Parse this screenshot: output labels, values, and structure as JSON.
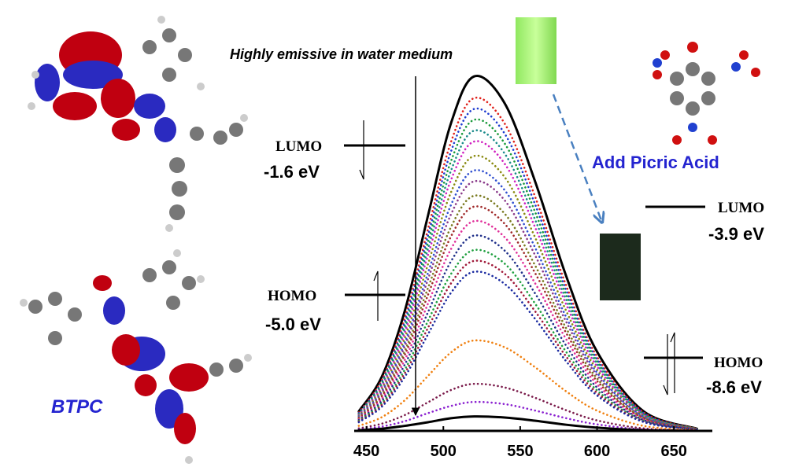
{
  "chart_data": {
    "type": "line",
    "annotations": {
      "emissive": "Highly emissive in water medium",
      "add": "Add Picric Acid",
      "compound": "BTPC",
      "left_lumo": "LUMO",
      "left_lumo_e": "-1.6 eV",
      "left_homo": "HOMO",
      "left_homo_e": "-5.0 eV",
      "right_lumo": "LUMO",
      "right_lumo_e": "-3.9 eV",
      "right_homo": "HOMO",
      "right_homo_e": "-8.6 eV"
    },
    "x": [
      445,
      460,
      475,
      490,
      505,
      520,
      540,
      560,
      580,
      600,
      630,
      665
    ],
    "xlim": [
      442,
      675
    ],
    "xticks": [
      450,
      500,
      550,
      600,
      650
    ],
    "ylim": [
      0,
      100
    ],
    "series": [
      {
        "color": "#000000",
        "dashed": false,
        "values": [
          5.4,
          15.0,
          33.3,
          59.5,
          85.1,
          98,
          90.5,
          68.6,
          42.7,
          21.9,
          5.5,
          0.6
        ]
      },
      {
        "color": "#e0201a",
        "dashed": true,
        "values": [
          5.1,
          14.1,
          31.3,
          55.8,
          79.9,
          92,
          84.9,
          64.4,
          40.1,
          20.5,
          5.2,
          0.6
        ]
      },
      {
        "color": "#1e3cd0",
        "dashed": true,
        "values": [
          4.9,
          13.6,
          30.3,
          54.0,
          77.3,
          89,
          82.1,
          62.3,
          38.8,
          19.8,
          5.0,
          0.5
        ]
      },
      {
        "color": "#1a9a3a",
        "dashed": true,
        "values": [
          4.7,
          13.2,
          29.2,
          52.2,
          74.6,
          86,
          79.4,
          60.2,
          37.5,
          19.2,
          4.8,
          0.5
        ]
      },
      {
        "color": "#1a8a8a",
        "dashed": true,
        "values": [
          4.6,
          12.7,
          28.2,
          50.4,
          72.0,
          83,
          76.6,
          58.1,
          36.2,
          18.5,
          4.6,
          0.5
        ]
      },
      {
        "color": "#d020c0",
        "dashed": true,
        "values": [
          4.4,
          12.2,
          27.2,
          48.6,
          69.4,
          80,
          73.8,
          56.0,
          34.9,
          17.8,
          4.5,
          0.5
        ]
      },
      {
        "color": "#8a8a10",
        "dashed": true,
        "values": [
          4.2,
          11.6,
          25.8,
          46.1,
          66.0,
          76,
          70.1,
          53.2,
          33.1,
          16.9,
          4.3,
          0.5
        ]
      },
      {
        "color": "#3050d0",
        "dashed": true,
        "values": [
          4.0,
          11.0,
          24.5,
          43.7,
          62.5,
          72,
          66.5,
          50.4,
          31.4,
          16.1,
          4.0,
          0.4
        ]
      },
      {
        "color": "#8a3a8a",
        "dashed": true,
        "values": [
          3.8,
          10.6,
          23.5,
          41.9,
          59.9,
          69,
          63.7,
          48.3,
          30.1,
          15.4,
          3.9,
          0.4
        ]
      },
      {
        "color": "#7a7a20",
        "dashed": true,
        "values": [
          3.6,
          9.9,
          22.1,
          39.5,
          56.4,
          65,
          60.0,
          45.5,
          28.3,
          14.5,
          3.6,
          0.4
        ]
      },
      {
        "color": "#a02a2a",
        "dashed": true,
        "values": [
          3.4,
          9.5,
          21.1,
          37.6,
          53.8,
          62,
          57.2,
          43.4,
          27.0,
          13.8,
          3.5,
          0.4
        ]
      },
      {
        "color": "#e0309a",
        "dashed": true,
        "values": [
          3.2,
          8.9,
          19.7,
          35.2,
          50.3,
          58,
          53.5,
          40.6,
          25.3,
          12.9,
          3.2,
          0.3
        ]
      },
      {
        "color": "#20308a",
        "dashed": true,
        "values": [
          3.0,
          8.3,
          18.4,
          32.8,
          46.9,
          54,
          49.8,
          37.8,
          23.5,
          12.0,
          3.0,
          0.3
        ]
      },
      {
        "color": "#20a040",
        "dashed": true,
        "values": [
          2.8,
          7.7,
          17.0,
          30.4,
          43.4,
          50,
          46.2,
          35.0,
          21.8,
          11.2,
          2.8,
          0.3
        ]
      },
      {
        "color": "#a01a3a",
        "dashed": true,
        "values": [
          2.6,
          7.2,
          16.0,
          28.5,
          40.8,
          47,
          43.4,
          32.9,
          20.5,
          10.5,
          2.6,
          0.3
        ]
      },
      {
        "color": "#1a2aa0",
        "dashed": true,
        "values": [
          2.4,
          6.7,
          15.0,
          26.7,
          38.2,
          44,
          40.6,
          30.8,
          19.2,
          9.8,
          2.5,
          0.3
        ]
      },
      {
        "color": "#f08010",
        "dashed": true,
        "values": [
          1.4,
          3.8,
          8.5,
          15.2,
          21.7,
          25,
          23.1,
          17.5,
          10.9,
          5.6,
          1.4,
          0.2
        ]
      },
      {
        "color": "#7a1a4a",
        "dashed": true,
        "values": [
          0.7,
          2.0,
          4.4,
          7.9,
          11.3,
          13,
          12.0,
          9.1,
          5.7,
          2.9,
          0.7,
          0.1
        ]
      },
      {
        "color": "#8a20d0",
        "dashed": true,
        "values": [
          0.4,
          1.2,
          2.7,
          4.9,
          6.9,
          8,
          7.4,
          5.6,
          3.5,
          1.8,
          0.4,
          0.0
        ]
      },
      {
        "color": "#000000",
        "dashed": false,
        "values": [
          0.2,
          0.6,
          1.4,
          2.4,
          3.5,
          4,
          3.7,
          2.8,
          1.7,
          0.9,
          0.2,
          0.0
        ]
      }
    ]
  }
}
